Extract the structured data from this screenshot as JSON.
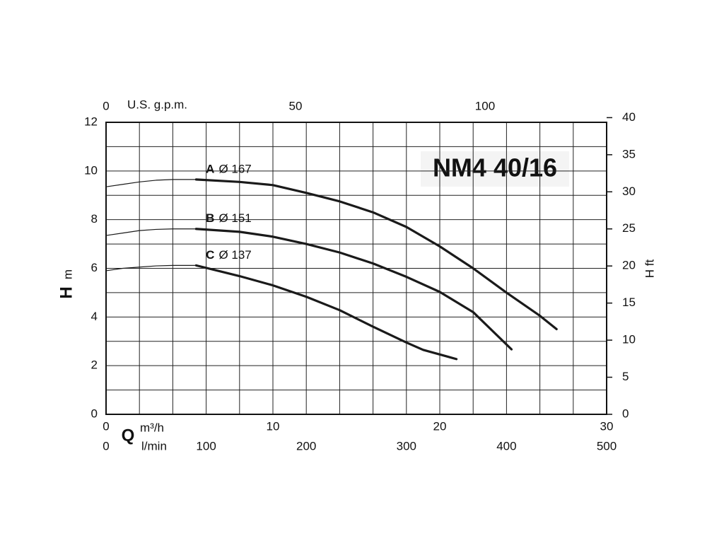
{
  "chart_data": {
    "type": "line",
    "title": "NM4 40/16",
    "y_label_main": "H",
    "y_label_unit": "m",
    "y2_label": "H ft",
    "x_label_main": "Q",
    "x_label_unit": "m³/h",
    "x3_label_unit": "l/min",
    "x2_label": "U.S. g.p.m.",
    "xlim": [
      0,
      30
    ],
    "xticks": [
      0,
      10,
      20,
      30
    ],
    "xgrid": [
      0,
      2,
      4,
      6,
      8,
      10,
      12,
      14,
      16,
      18,
      20,
      22,
      24,
      26,
      28,
      30
    ],
    "ylim": [
      0,
      12
    ],
    "yticks": [
      0,
      2,
      4,
      6,
      8,
      10,
      12
    ],
    "ygrid": [
      0,
      1,
      2,
      3,
      4,
      5,
      6,
      7,
      8,
      9,
      10,
      11,
      12
    ],
    "y2lim": [
      0,
      39.37
    ],
    "y2ticks": [
      0,
      5,
      10,
      15,
      20,
      25,
      30,
      35,
      40
    ],
    "x2lim": [
      0,
      132.09
    ],
    "x2ticks": [
      0,
      50,
      100
    ],
    "x3lim": [
      0,
      500
    ],
    "x3ticks": [
      0,
      100,
      200,
      300,
      400,
      500
    ],
    "color": "#1a1a1a",
    "series": [
      {
        "letter": "A",
        "diameter": "Ø 167",
        "width": 3.2,
        "x": [
          5.4,
          8,
          10,
          12,
          14,
          16,
          18,
          20,
          22,
          24,
          26,
          27
        ],
        "values": [
          9.65,
          9.55,
          9.42,
          9.1,
          8.75,
          8.3,
          7.7,
          6.9,
          6.0,
          5.0,
          4.05,
          3.5
        ]
      },
      {
        "width": 1.2,
        "x": [
          0,
          1,
          2,
          3,
          4,
          5.4
        ],
        "values": [
          9.35,
          9.45,
          9.55,
          9.62,
          9.65,
          9.65
        ]
      },
      {
        "letter": "B",
        "diameter": "Ø 151",
        "width": 3.2,
        "x": [
          5.4,
          8,
          10,
          12,
          14,
          16,
          18,
          20,
          22,
          24.3
        ],
        "values": [
          7.62,
          7.5,
          7.3,
          7.0,
          6.65,
          6.2,
          5.65,
          5.03,
          4.2,
          2.67
        ]
      },
      {
        "width": 1.2,
        "x": [
          0,
          1,
          2,
          3,
          4,
          5.4
        ],
        "values": [
          7.35,
          7.45,
          7.55,
          7.6,
          7.62,
          7.62
        ]
      },
      {
        "letter": "C",
        "diameter": "Ø 137",
        "width": 3.2,
        "x": [
          5.4,
          8,
          10,
          12,
          14,
          16,
          18,
          19,
          21
        ],
        "values": [
          6.12,
          5.68,
          5.3,
          4.83,
          4.28,
          3.6,
          2.95,
          2.65,
          2.27
        ]
      },
      {
        "width": 1.2,
        "x": [
          0,
          1,
          2,
          3,
          4,
          5.4
        ],
        "values": [
          5.9,
          6.0,
          6.05,
          6.1,
          6.12,
          6.12
        ]
      }
    ]
  }
}
